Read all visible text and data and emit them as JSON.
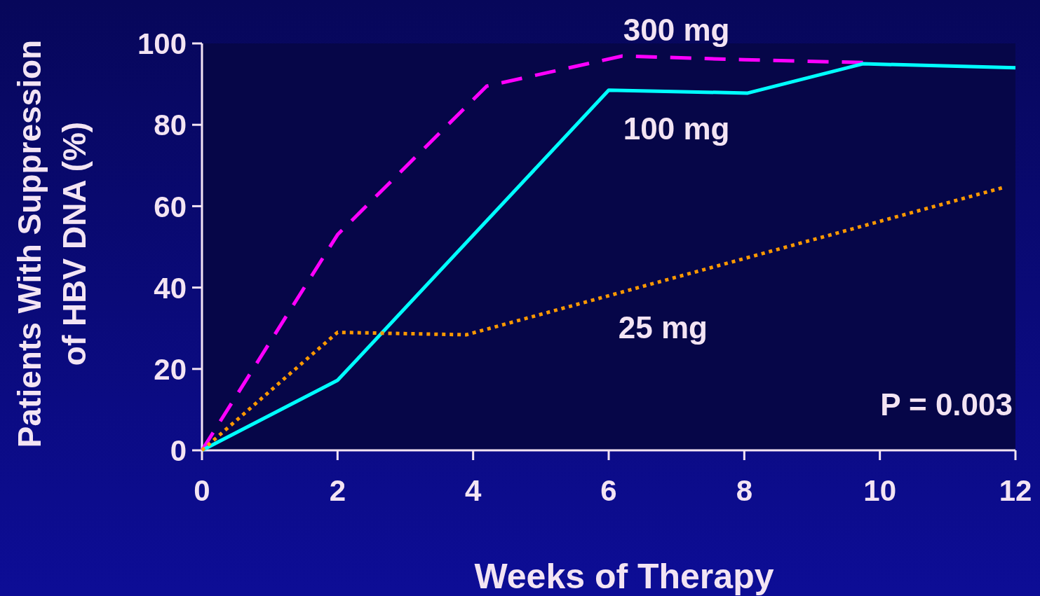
{
  "chart_data": {
    "type": "line",
    "xlabel": "Weeks of Therapy",
    "ylabel": "Patients With Suppression\nof HBV DNA (%)",
    "xlim": [
      0,
      12
    ],
    "xticks": [
      0,
      2,
      4,
      6,
      8,
      10,
      12
    ],
    "ylim": [
      0,
      100
    ],
    "yticks": [
      0,
      20,
      40,
      60,
      80,
      100
    ],
    "grid": false,
    "marker": "none",
    "series": [
      {
        "name": "300 mg",
        "color": "#ff00ff",
        "line_style": "dashed",
        "x": [
          0,
          2,
          4.2,
          6.2,
          8,
          9.75
        ],
        "values": [
          0,
          53,
          89.5,
          96.9,
          96,
          95.3
        ]
      },
      {
        "name": "100 mg",
        "color": "#00ffff",
        "line_style": "solid",
        "x": [
          0,
          2,
          6,
          8.05,
          9.75,
          12
        ],
        "values": [
          0,
          17.2,
          88.5,
          87.8,
          95,
          94
        ]
      },
      {
        "name": "25 mg",
        "color": "#ff9900",
        "line_style": "dotted",
        "x": [
          0,
          2,
          3.9,
          11.8
        ],
        "values": [
          0,
          29,
          28.4,
          64.5
        ]
      }
    ],
    "annotations": [
      "P = 0.003"
    ]
  }
}
